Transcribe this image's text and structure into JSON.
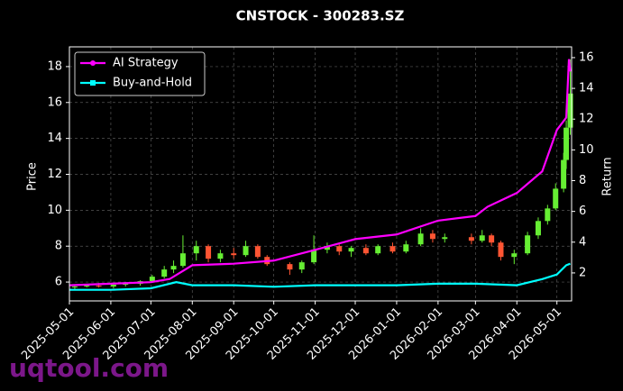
{
  "chart_data": {
    "type": "candlestick",
    "title": "CNSTOCK - 300283.SZ",
    "ylabel": "Price",
    "y2label": "Return",
    "watermark": "uqtool.com",
    "xlim": [
      "2025-05-01",
      "2026-05-12"
    ],
    "xticks": [
      "2025-05-01",
      "2025-06-01",
      "2025-07-01",
      "2025-08-01",
      "2025-09-01",
      "2025-10-01",
      "2025-11-01",
      "2025-12-01",
      "2026-01-01",
      "2026-02-01",
      "2026-03-01",
      "2026-04-01",
      "2026-05-01"
    ],
    "ylim": [
      4.95,
      19.1
    ],
    "yticks": [
      6,
      8,
      10,
      12,
      14,
      16,
      18
    ],
    "y2lim": [
      0.18,
      16.7
    ],
    "y2ticks": [
      2,
      4,
      6,
      8,
      10,
      12,
      14,
      16
    ],
    "grid": true,
    "legend": "upper left",
    "up_color": "#66ee33",
    "down_color": "#ff5533",
    "candles": {
      "x": [
        "2025-05-05",
        "2025-05-14",
        "2025-05-23",
        "2025-06-03",
        "2025-06-12",
        "2025-06-23",
        "2025-07-02",
        "2025-07-11",
        "2025-07-18",
        "2025-07-25",
        "2025-08-04",
        "2025-08-13",
        "2025-08-22",
        "2025-09-01",
        "2025-09-10",
        "2025-09-19",
        "2025-09-26",
        "2025-10-13",
        "2025-10-22",
        "2025-10-31",
        "2025-11-10",
        "2025-11-19",
        "2025-11-28",
        "2025-12-09",
        "2025-12-18",
        "2025-12-29",
        "2026-01-08",
        "2026-01-19",
        "2026-01-28",
        "2026-02-06",
        "2026-02-26",
        "2026-03-06",
        "2026-03-13",
        "2026-03-20",
        "2026-03-30",
        "2026-04-09",
        "2026-04-17",
        "2026-04-24",
        "2026-04-30",
        "2026-05-06",
        "2026-05-08",
        "2026-05-11"
      ],
      "open": [
        5.7,
        5.75,
        5.8,
        5.75,
        5.85,
        5.9,
        6.05,
        6.3,
        6.7,
        6.9,
        7.6,
        8.0,
        7.3,
        7.6,
        7.5,
        8.0,
        7.4,
        7.0,
        6.7,
        7.1,
        7.8,
        8.0,
        7.7,
        7.9,
        7.6,
        8.0,
        7.7,
        8.1,
        8.7,
        8.4,
        8.5,
        8.3,
        8.6,
        8.2,
        7.4,
        7.6,
        8.6,
        9.4,
        10.1,
        11.2,
        12.8,
        14.6
      ],
      "high": [
        5.8,
        5.9,
        5.95,
        5.9,
        6.0,
        6.1,
        6.4,
        6.9,
        7.2,
        8.6,
        8.3,
        8.1,
        7.8,
        7.9,
        8.3,
        8.1,
        7.5,
        7.1,
        7.2,
        8.6,
        8.2,
        8.1,
        8.0,
        8.1,
        8.1,
        8.2,
        8.3,
        9.0,
        8.9,
        8.7,
        8.7,
        8.9,
        8.7,
        8.3,
        7.8,
        8.8,
        9.6,
        10.3,
        11.5,
        13.2,
        15.0,
        18.4
      ],
      "low": [
        5.6,
        5.7,
        5.7,
        5.65,
        5.75,
        5.8,
        6.0,
        6.2,
        6.5,
        6.8,
        7.2,
        7.1,
        7.1,
        7.3,
        7.4,
        7.3,
        6.9,
        6.4,
        6.5,
        7.0,
        7.6,
        7.5,
        7.4,
        7.5,
        7.5,
        7.6,
        7.6,
        8.0,
        8.2,
        8.2,
        8.1,
        8.2,
        8.0,
        7.2,
        7.0,
        7.5,
        8.4,
        9.2,
        10.0,
        11.0,
        12.3,
        14.2
      ],
      "close": [
        5.75,
        5.8,
        5.75,
        5.85,
        5.9,
        6.05,
        6.3,
        6.7,
        6.9,
        7.6,
        8.0,
        7.3,
        7.6,
        7.5,
        8.0,
        7.4,
        7.0,
        6.7,
        7.1,
        7.8,
        8.0,
        7.7,
        7.9,
        7.6,
        8.0,
        7.7,
        8.1,
        8.7,
        8.4,
        8.5,
        8.3,
        8.6,
        8.2,
        7.4,
        7.6,
        8.6,
        9.4,
        10.1,
        11.2,
        12.8,
        14.6,
        16.5
      ]
    },
    "series": [
      {
        "name": "AI Strategy",
        "color": "#ff00ff",
        "axis": "y2",
        "x": [
          "2025-05-01",
          "2025-06-01",
          "2025-07-01",
          "2025-07-15",
          "2025-08-01",
          "2025-09-01",
          "2025-10-01",
          "2025-11-01",
          "2025-12-01",
          "2026-01-01",
          "2026-02-01",
          "2026-03-01",
          "2026-03-10",
          "2026-04-01",
          "2026-04-20",
          "2026-05-01",
          "2026-05-08",
          "2026-05-10",
          "2026-05-11"
        ],
        "values": [
          1.2,
          1.3,
          1.4,
          1.6,
          2.5,
          2.6,
          2.8,
          3.5,
          4.2,
          4.5,
          5.4,
          5.7,
          6.3,
          7.2,
          8.6,
          11.3,
          12.1,
          15.9,
          15.1
        ]
      },
      {
        "name": "Buy-and-Hold",
        "color": "#00ffff",
        "axis": "y2",
        "x": [
          "2025-05-01",
          "2025-06-01",
          "2025-07-01",
          "2025-07-20",
          "2025-08-01",
          "2025-09-01",
          "2025-10-01",
          "2025-11-01",
          "2025-12-01",
          "2026-01-01",
          "2026-02-01",
          "2026-03-01",
          "2026-04-01",
          "2026-04-20",
          "2026-05-01",
          "2026-05-08",
          "2026-05-11"
        ],
        "values": [
          0.9,
          0.9,
          1.0,
          1.4,
          1.2,
          1.2,
          1.1,
          1.2,
          1.2,
          1.2,
          1.3,
          1.3,
          1.2,
          1.6,
          1.9,
          2.5,
          2.6
        ]
      }
    ]
  }
}
